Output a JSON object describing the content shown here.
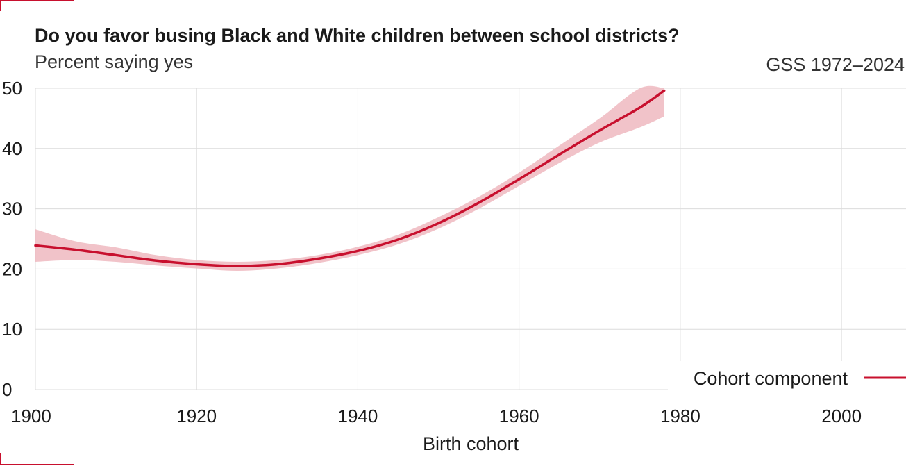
{
  "header": {
    "title": "Do you favor busing Black and White children between school districts?",
    "subtitle": "Percent saying yes",
    "source": "GSS 1972–2024"
  },
  "colors": {
    "line": "#c8102e",
    "band": "#eeb8c0",
    "grid": "#dcdcdc",
    "accent": "#c8102e"
  },
  "chart_data": {
    "type": "line",
    "title": "Do you favor busing Black and White children between school districts?",
    "subtitle": "Percent saying yes",
    "xlabel": "Birth cohort",
    "ylabel": "",
    "xlim": [
      1900,
      2008
    ],
    "ylim": [
      0,
      50
    ],
    "xticks": [
      1900,
      1920,
      1940,
      1960,
      1980,
      2000
    ],
    "yticks": [
      0,
      10,
      20,
      30,
      40,
      50
    ],
    "grid": true,
    "legend": "bottom-right",
    "series": [
      {
        "name": "Cohort component",
        "x": [
          1900,
          1905,
          1910,
          1915,
          1920,
          1925,
          1930,
          1935,
          1940,
          1945,
          1950,
          1955,
          1960,
          1965,
          1970,
          1975,
          1978
        ],
        "y": [
          23.9,
          23.2,
          22.3,
          21.4,
          20.8,
          20.5,
          20.8,
          21.7,
          23.0,
          24.9,
          27.6,
          31.0,
          34.9,
          39.0,
          43.0,
          46.8,
          49.6
        ],
        "lower": [
          21.2,
          21.5,
          21.2,
          20.6,
          20.1,
          19.7,
          20.1,
          21.0,
          22.3,
          24.1,
          26.7,
          30.0,
          33.8,
          37.6,
          41.0,
          43.5,
          45.3
        ],
        "upper": [
          26.6,
          24.6,
          23.6,
          22.3,
          21.5,
          21.2,
          21.5,
          22.3,
          23.7,
          25.7,
          28.6,
          32.0,
          36.0,
          40.5,
          45.0,
          50.0,
          50.0
        ]
      }
    ]
  }
}
